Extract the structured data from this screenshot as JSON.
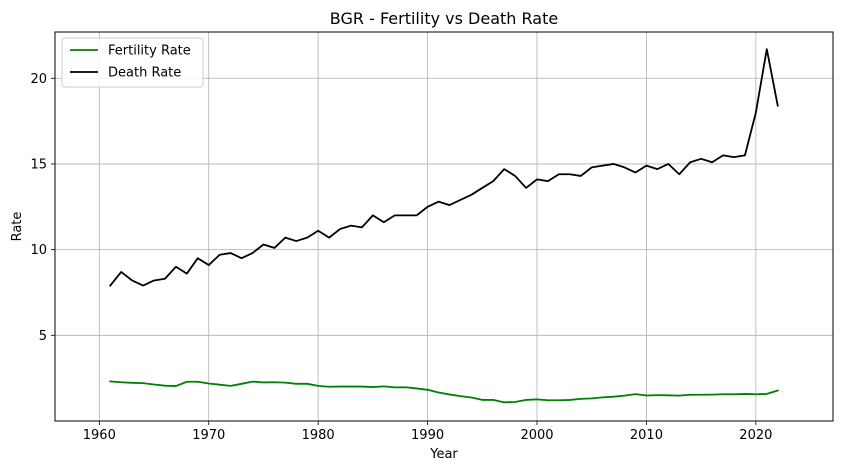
{
  "chart_data": {
    "type": "line",
    "title": "BGR - Fertility vs Death Rate",
    "xlabel": "Year",
    "ylabel": "Rate",
    "xlim": [
      1955.95,
      2027.05
    ],
    "ylim": [
      0.0,
      22.7
    ],
    "xticks": [
      1960,
      1970,
      1980,
      1990,
      2000,
      2010,
      2020
    ],
    "yticks": [
      5,
      10,
      15,
      20
    ],
    "grid": true,
    "legend_position": "top-left",
    "x": [
      1961,
      1962,
      1963,
      1964,
      1965,
      1966,
      1967,
      1968,
      1969,
      1970,
      1971,
      1972,
      1973,
      1974,
      1975,
      1976,
      1977,
      1978,
      1979,
      1980,
      1981,
      1982,
      1983,
      1984,
      1985,
      1986,
      1987,
      1988,
      1989,
      1990,
      1991,
      1992,
      1993,
      1994,
      1995,
      1996,
      1997,
      1998,
      1999,
      2000,
      2001,
      2002,
      2003,
      2004,
      2005,
      2006,
      2007,
      2008,
      2009,
      2010,
      2011,
      2012,
      2013,
      2014,
      2015,
      2016,
      2017,
      2018,
      2019,
      2020,
      2021,
      2022
    ],
    "series": [
      {
        "name": "Fertility Rate",
        "color": "#008000",
        "values": [
          2.31,
          2.26,
          2.23,
          2.21,
          2.13,
          2.06,
          2.04,
          2.29,
          2.29,
          2.19,
          2.12,
          2.05,
          2.17,
          2.3,
          2.25,
          2.26,
          2.24,
          2.17,
          2.17,
          2.05,
          2.0,
          2.01,
          2.01,
          2.01,
          1.98,
          2.02,
          1.96,
          1.97,
          1.9,
          1.82,
          1.66,
          1.55,
          1.45,
          1.37,
          1.23,
          1.23,
          1.09,
          1.11,
          1.23,
          1.26,
          1.21,
          1.21,
          1.23,
          1.29,
          1.32,
          1.38,
          1.42,
          1.48,
          1.57,
          1.49,
          1.51,
          1.5,
          1.48,
          1.53,
          1.53,
          1.54,
          1.56,
          1.56,
          1.58,
          1.56,
          1.58,
          1.78
        ]
      },
      {
        "name": "Death Rate",
        "color": "#000000",
        "values": [
          7.9,
          8.7,
          8.2,
          7.9,
          8.2,
          8.3,
          9.0,
          8.6,
          9.5,
          9.1,
          9.7,
          9.8,
          9.5,
          9.8,
          10.3,
          10.1,
          10.7,
          10.5,
          10.7,
          11.1,
          10.7,
          11.2,
          11.4,
          11.3,
          12.0,
          11.6,
          12.0,
          12.0,
          12.0,
          12.5,
          12.8,
          12.6,
          12.9,
          13.2,
          13.6,
          14.0,
          14.7,
          14.3,
          13.6,
          14.1,
          14.0,
          14.4,
          14.4,
          14.3,
          14.8,
          14.9,
          15.0,
          14.8,
          14.5,
          14.9,
          14.7,
          15.0,
          14.4,
          15.1,
          15.3,
          15.1,
          15.5,
          15.4,
          15.5,
          18.0,
          21.7,
          18.4
        ]
      }
    ]
  }
}
